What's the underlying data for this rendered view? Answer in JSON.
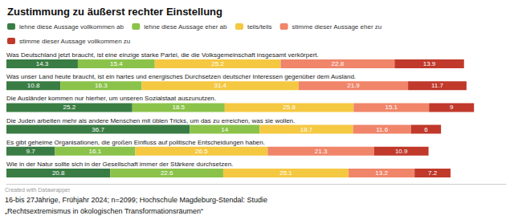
{
  "chart_data": {
    "type": "bar",
    "orientation": "horizontal",
    "stacked": true,
    "title": "Zustimmung zu äußerst rechter Einstellung",
    "categories": [
      "Was Deutschland jetzt braucht, ist eine einzige starke Partei, die die Volksgemeinschaft insgesamt verkörpert.",
      "Was unser Land heute braucht, ist ein hartes und energisches Durchsetzen deutscher Interessen gegenüber dem Ausland.",
      "Die Ausländer kommen nur hierher, um unseren Sozialstaat auszunutzen.",
      "Die Juden arbeiten mehr als andere Menschen mit üblen Tricks, um das zu erreichen, was sie wollen.",
      "Es gibt geheime Organisationen, die großen Einfluss auf politische Entscheidungen haben.",
      "Wie in der Natur sollte sich in der Gesellschaft immer der Stärkere durchsetzen."
    ],
    "series": [
      {
        "name": "lehne diese Aussage vollkommen ab",
        "color": "#3a7d44",
        "values": [
          14.3,
          10.8,
          25.2,
          36.7,
          9.7,
          20.8
        ]
      },
      {
        "name": "lehne diese Aussage eher ab",
        "color": "#8bc34a",
        "values": [
          15.4,
          16.3,
          18.5,
          14.0,
          16.1,
          22.6
        ]
      },
      {
        "name": "teils/teils",
        "color": "#f5c842",
        "values": [
          25.2,
          31.4,
          25.8,
          18.7,
          26.5,
          25.1
        ]
      },
      {
        "name": "stimme dieser Aussage eher zu",
        "color": "#f0856a",
        "values": [
          22.8,
          21.9,
          15.1,
          11.6,
          21.3,
          13.2
        ]
      },
      {
        "name": "stimme dieser Aussage vollkommen zu",
        "color": "#c0392b",
        "values": [
          13.9,
          11.7,
          9.0,
          6.0,
          10.9,
          7.2
        ]
      }
    ],
    "xlim": [
      0,
      100
    ],
    "data_labels": true,
    "tick_labels": "y",
    "grid": false,
    "legend": "top",
    "annotations": [
      "Created with Datawrapper",
      "16-bis 27Jährige, Frühjahr 2024; n=2099; Hochschule Magdeburg-Stendal: Studie",
      "„Rechtsextremismus in ökologischen Transformationsräumen“"
    ]
  }
}
